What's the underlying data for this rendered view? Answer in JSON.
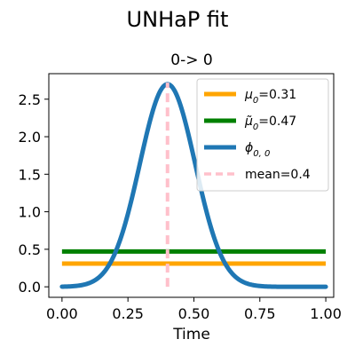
{
  "chart_data": {
    "type": "line",
    "title": "UNHaP fit",
    "subtitle": "0-> 0",
    "xlabel": "Time",
    "ylabel": "",
    "xlim": [
      -0.05,
      1.03
    ],
    "ylim": [
      -0.14,
      2.84
    ],
    "x_ticks": [
      "0.00",
      "0.25",
      "0.50",
      "0.75",
      "1.00"
    ],
    "y_ticks": [
      "0.0",
      "0.5",
      "1.0",
      "1.5",
      "2.0",
      "2.5"
    ],
    "grid": false,
    "legend_position": "upper-right",
    "series": [
      {
        "name": "μ0=0.31",
        "legend_main": "μ",
        "legend_sub": "0",
        "legend_tail": "=0.31",
        "kind": "constant",
        "y": 0.31,
        "x_range": [
          0,
          1
        ],
        "color": "#ffa500"
      },
      {
        "name": "μ̃0=0.47",
        "legend_main": "μ̃",
        "legend_sub": "0",
        "legend_tail": "=0.47",
        "kind": "constant",
        "y": 0.47,
        "x_range": [
          0,
          1
        ],
        "color": "#008000"
      },
      {
        "name": "ϕ0,0",
        "legend_main": "ϕ",
        "legend_sub": "0, 0",
        "legend_tail": "",
        "kind": "gaussian-kernel",
        "mean": 0.4,
        "peak": 2.7,
        "std": 0.105,
        "x_range": [
          0,
          1
        ],
        "color": "#1f77b4"
      },
      {
        "name": "mean=0.4",
        "legend_main": "mean=0.4",
        "legend_sub": "",
        "legend_tail": "",
        "kind": "vertical",
        "x": 0.4,
        "y_range": [
          0,
          2.72
        ],
        "color": "#ffc0cb",
        "dashed": true
      }
    ]
  }
}
